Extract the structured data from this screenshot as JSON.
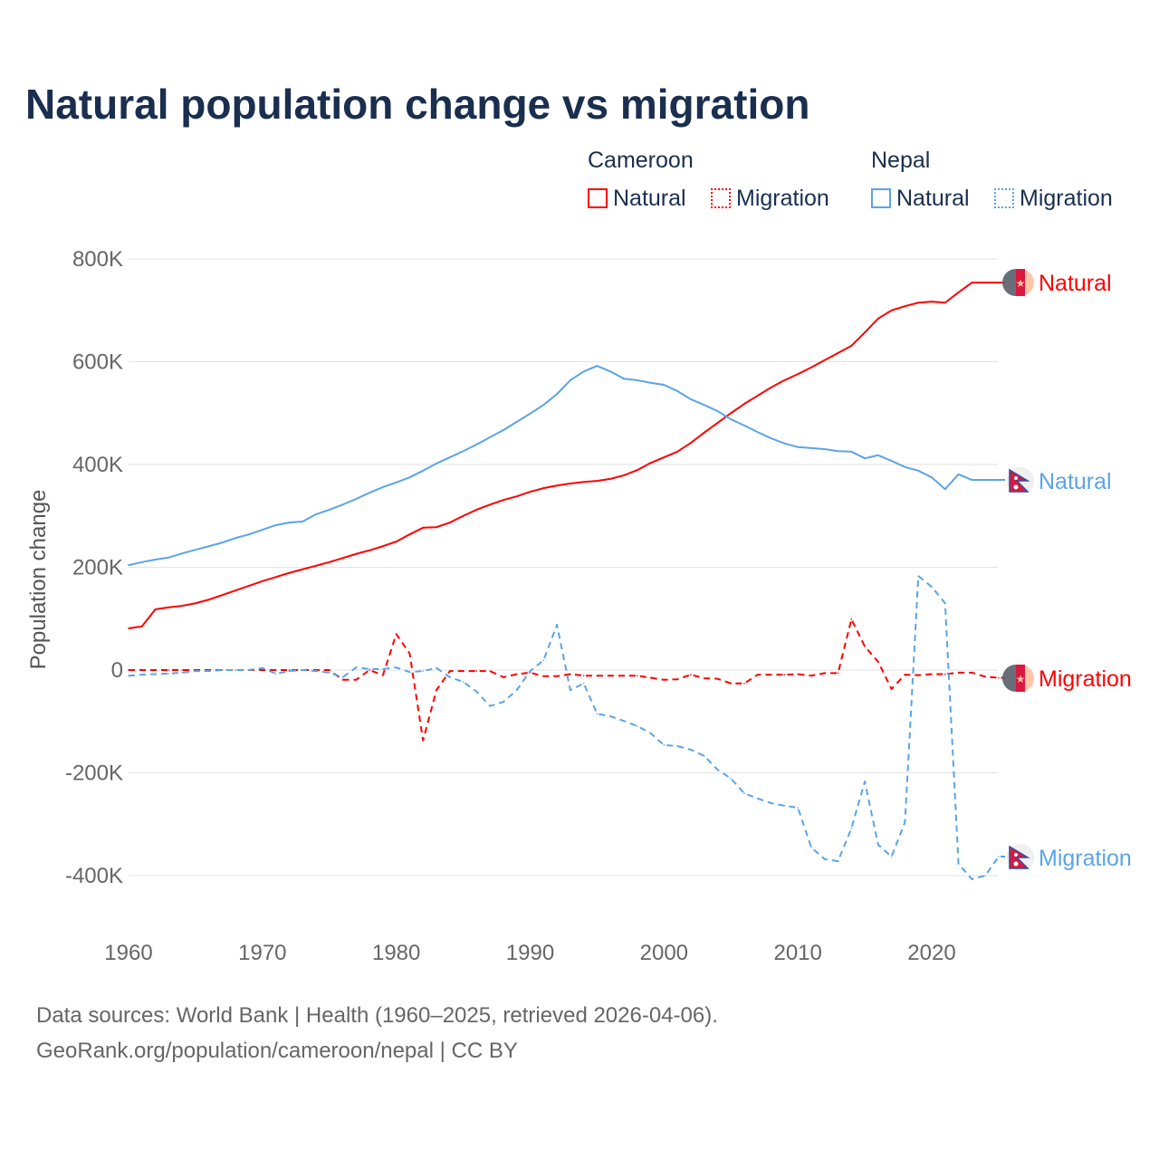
{
  "title": "Natural population change vs migration",
  "legend": {
    "groups": [
      {
        "name": "Cameroon",
        "items": [
          "Natural",
          "Migration"
        ],
        "color": "#ff0000"
      },
      {
        "name": "Nepal",
        "items": [
          "Natural",
          "Migration"
        ],
        "color": "#5ba4e6"
      }
    ]
  },
  "footer": {
    "line1": "Data sources: World Bank | Health (1960–2025, retrieved 2026-04-06).",
    "line2": "GeoRank.org/population/cameroon/nepal | CC BY"
  },
  "chart_data": {
    "type": "line",
    "title": "Natural population change vs migration",
    "ylabel": "Population change",
    "xlabel": "",
    "ylim": [
      -500000,
      800000
    ],
    "xlim": [
      1960,
      2025
    ],
    "yticks": [
      {
        "v": 800000,
        "label": "800K"
      },
      {
        "v": 600000,
        "label": "600K"
      },
      {
        "v": 400000,
        "label": "400K"
      },
      {
        "v": 200000,
        "label": "200K"
      },
      {
        "v": 0,
        "label": "0"
      },
      {
        "v": -200000,
        "label": "-200K"
      },
      {
        "v": -400000,
        "label": "-400K"
      }
    ],
    "xticks": [
      {
        "v": 1960,
        "label": "1960"
      },
      {
        "v": 1970,
        "label": "1970"
      },
      {
        "v": 1980,
        "label": "1980"
      },
      {
        "v": 1990,
        "label": "1990"
      },
      {
        "v": 2000,
        "label": "2000"
      },
      {
        "v": 2010,
        "label": "2010"
      },
      {
        "v": 2020,
        "label": "2020"
      }
    ],
    "grid": true,
    "x_start": 1960,
    "series": [
      {
        "name": "Cameroon Natural",
        "label": "Natural",
        "color": "#ff0000",
        "dash": false,
        "flag": "cameroon",
        "values": [
          81000,
          85000,
          118000,
          122000,
          125000,
          130000,
          137000,
          146000,
          155000,
          164000,
          173000,
          181000,
          189000,
          196000,
          203000,
          210000,
          218000,
          226000,
          233000,
          241000,
          250000,
          264000,
          277000,
          278000,
          287000,
          300000,
          312000,
          322000,
          331000,
          338000,
          347000,
          354000,
          359000,
          363000,
          366000,
          368000,
          372000,
          379000,
          389000,
          403000,
          414000,
          425000,
          442000,
          462000,
          481000,
          500000,
          518000,
          534000,
          550000,
          564000,
          576000,
          589000,
          603000,
          617000,
          631000,
          657000,
          684000,
          700000,
          708000,
          715000,
          717000,
          715000,
          735000,
          754000
        ]
      },
      {
        "name": "Nepal Natural",
        "label": "Natural",
        "color": "#5ba4e6",
        "dash": false,
        "flag": "nepal",
        "values": [
          204000,
          210000,
          215000,
          219000,
          227000,
          234000,
          241000,
          248000,
          257000,
          264000,
          273000,
          282000,
          287000,
          289000,
          303000,
          312000,
          322000,
          333000,
          345000,
          356000,
          365000,
          375000,
          388000,
          402000,
          414000,
          426000,
          439000,
          453000,
          467000,
          483000,
          499000,
          516000,
          537000,
          564000,
          581000,
          592000,
          581000,
          567000,
          564000,
          559000,
          555000,
          543000,
          527000,
          516000,
          504000,
          488000,
          476000,
          463000,
          451000,
          441000,
          434000,
          432000,
          430000,
          426000,
          425000,
          412000,
          418000,
          407000,
          395000,
          388000,
          375000,
          352000,
          381000,
          370000
        ]
      },
      {
        "name": "Cameroon Migration",
        "label": "Migration",
        "color": "#ff0000",
        "dash": true,
        "flag": "cameroon",
        "values": [
          0,
          0,
          0,
          0,
          0,
          0,
          0,
          0,
          0,
          0,
          0,
          0,
          0,
          0,
          0,
          0,
          -19000,
          -19000,
          0,
          -10000,
          70000,
          32000,
          -137000,
          -39000,
          -2000,
          -2000,
          -2000,
          -2000,
          -14000,
          -8000,
          -5000,
          -12000,
          -12000,
          -8000,
          -11000,
          -11000,
          -11000,
          -11000,
          -11000,
          -15000,
          -19000,
          -18000,
          -9000,
          -16000,
          -17000,
          -26000,
          -26000,
          -9000,
          -9000,
          -9000,
          -8000,
          -11000,
          -6000,
          -6000,
          99000,
          46000,
          16000,
          -37000,
          -9000,
          -10000,
          -8000,
          -8000,
          -5000,
          -5000,
          -13000,
          -15000
        ]
      },
      {
        "name": "Nepal Migration",
        "label": "Migration",
        "color": "#5ba4e6",
        "dash": true,
        "flag": "nepal",
        "values": [
          -11000,
          -9000,
          -8000,
          -7000,
          -5000,
          -2000,
          -2000,
          0,
          0,
          0,
          4000,
          -7000,
          -2000,
          0,
          -2000,
          -5000,
          -14000,
          5000,
          2000,
          2000,
          5000,
          -4000,
          -2000,
          4000,
          -14000,
          -23000,
          -42000,
          -70000,
          -62000,
          -39000,
          -2000,
          19000,
          88000,
          -39000,
          -26000,
          -85000,
          -90000,
          -99000,
          -109000,
          -123000,
          -146000,
          -148000,
          -155000,
          -167000,
          -194000,
          -211000,
          -240000,
          -250000,
          -259000,
          -264000,
          -268000,
          -345000,
          -368000,
          -372000,
          -308000,
          -217000,
          -340000,
          -363000,
          -296000,
          183000,
          162000,
          130000,
          -377000,
          -407000,
          -400000,
          -363000
        ]
      }
    ]
  }
}
